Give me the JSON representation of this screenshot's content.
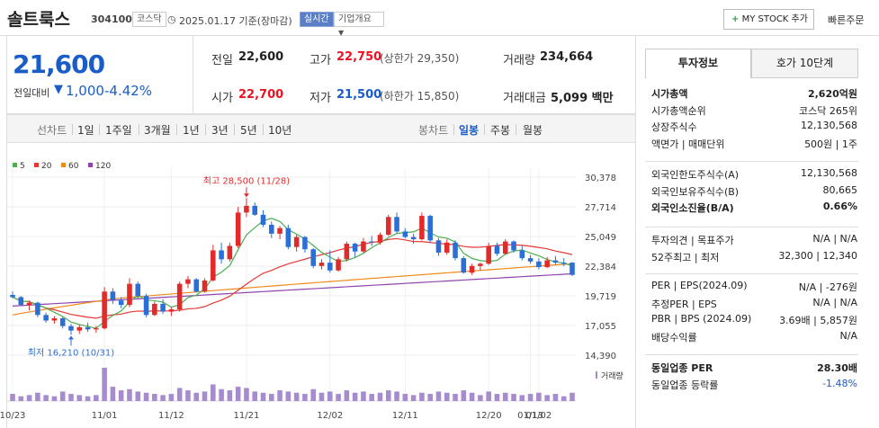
{
  "header": {
    "name": "솔트룩스",
    "code": "304100",
    "market": "코스닥",
    "date_label": "2025.01.17 기준(장마감)",
    "realtime": "실시간",
    "company_info": "기업개요",
    "mystock": "MY STOCK 추가",
    "quick_order": "빠른주문"
  },
  "price": {
    "current": "21,600",
    "change_label": "전일대비",
    "change_value": "1,000",
    "change_pct": "-4.42%"
  },
  "quote": {
    "prev_close_label": "전일",
    "prev_close": "22,600",
    "high_label": "고가",
    "high": "22,750",
    "upper_limit": "(상한가 29,350)",
    "volume_label": "거래량",
    "volume": "234,664",
    "open_label": "시가",
    "open": "22,700",
    "low_label": "저가",
    "low": "21,500",
    "lower_limit": "(하한가 15,850)",
    "amount_label": "거래대금",
    "amount": "5,099 백만"
  },
  "periods": {
    "line_label": "선차트",
    "line_items": [
      "1일",
      "1주일",
      "3개월",
      "1년",
      "3년",
      "5년",
      "10년"
    ],
    "candle_label": "봉차트",
    "candle_items": [
      "일봉",
      "주봉",
      "월봉"
    ],
    "candle_selected": "일봉"
  },
  "chart_data": {
    "type": "candlestick",
    "legend": [
      {
        "name": "5",
        "color": "#4caf50"
      },
      {
        "name": "20",
        "color": "#e53935"
      },
      {
        "name": "60",
        "color": "#ef8a1a"
      },
      {
        "name": "120",
        "color": "#8e44ad"
      }
    ],
    "y_ticks": [
      "30,378",
      "27,714",
      "25,049",
      "22,384",
      "19,719",
      "17,055",
      "14,390"
    ],
    "ylim": [
      14390,
      30378
    ],
    "x_ticks": [
      "10/23",
      "11/01",
      "11/12",
      "11/21",
      "12/02",
      "12/11",
      "12/20",
      "01/02",
      "01/13"
    ],
    "max_label": "최고 28,500 (11/28)",
    "min_label": "최저 16,210 (10/31)",
    "volume_label": "거래량",
    "candles": [
      [
        19800,
        20100,
        19500,
        19600
      ],
      [
        19600,
        19700,
        18800,
        18900
      ],
      [
        18900,
        19300,
        18400,
        19100
      ],
      [
        19100,
        19200,
        17800,
        18000
      ],
      [
        18000,
        18200,
        17300,
        17500
      ],
      [
        17500,
        17900,
        17200,
        17700
      ],
      [
        17700,
        17800,
        16800,
        17000
      ],
      [
        17000,
        17200,
        16210,
        16600
      ],
      [
        16600,
        17100,
        16300,
        16900
      ],
      [
        16900,
        17300,
        16500,
        16700
      ],
      [
        16700,
        17000,
        16400,
        16800
      ],
      [
        16800,
        20500,
        16700,
        20100
      ],
      [
        20100,
        20400,
        19000,
        19300
      ],
      [
        19300,
        19600,
        18600,
        18900
      ],
      [
        18900,
        21300,
        18700,
        20800
      ],
      [
        20800,
        21000,
        19400,
        19700
      ],
      [
        19700,
        19900,
        17800,
        18000
      ],
      [
        18000,
        19200,
        17900,
        19000
      ],
      [
        19000,
        19400,
        18100,
        18300
      ],
      [
        18300,
        18700,
        17900,
        18500
      ],
      [
        18500,
        21000,
        18300,
        20800
      ],
      [
        20800,
        21500,
        20400,
        21200
      ],
      [
        21200,
        21300,
        20000,
        20100
      ],
      [
        20100,
        21300,
        20000,
        21100
      ],
      [
        21100,
        24300,
        21000,
        23800
      ],
      [
        23800,
        24500,
        22600,
        23000
      ],
      [
        23000,
        24500,
        22800,
        24200
      ],
      [
        24200,
        27700,
        24000,
        27200
      ],
      [
        27200,
        28500,
        26800,
        27800
      ],
      [
        27800,
        28100,
        26900,
        27000
      ],
      [
        27000,
        27400,
        25900,
        26100
      ],
      [
        26100,
        26400,
        24900,
        25300
      ],
      [
        25300,
        26000,
        24800,
        25800
      ],
      [
        25800,
        26100,
        23900,
        24100
      ],
      [
        24100,
        25200,
        23700,
        25000
      ],
      [
        25000,
        25100,
        23600,
        23900
      ],
      [
        23900,
        24000,
        22200,
        22400
      ],
      [
        22400,
        23000,
        22100,
        22700
      ],
      [
        22700,
        23800,
        21800,
        22000
      ],
      [
        22000,
        23200,
        21900,
        23000
      ],
      [
        23000,
        24600,
        22800,
        24400
      ],
      [
        24400,
        24500,
        23200,
        23700
      ],
      [
        23700,
        24900,
        23600,
        24600
      ],
      [
        24600,
        25100,
        24200,
        24500
      ],
      [
        24500,
        25400,
        24300,
        25200
      ],
      [
        25200,
        27000,
        25100,
        26800
      ],
      [
        26800,
        27200,
        25300,
        25500
      ],
      [
        25500,
        25800,
        24900,
        25000
      ],
      [
        25000,
        25300,
        24400,
        24800
      ],
      [
        24800,
        27200,
        24700,
        26900
      ],
      [
        26900,
        27000,
        24500,
        24700
      ],
      [
        24700,
        24900,
        23300,
        23600
      ],
      [
        23600,
        24800,
        23400,
        24500
      ],
      [
        24500,
        24700,
        22900,
        23100
      ],
      [
        23100,
        23300,
        21700,
        21800
      ],
      [
        21800,
        22600,
        21600,
        22400
      ],
      [
        22400,
        22700,
        22000,
        22600
      ],
      [
        22600,
        24500,
        22500,
        24200
      ],
      [
        24200,
        24500,
        23300,
        23500
      ],
      [
        23500,
        24800,
        23400,
        24600
      ],
      [
        24600,
        24700,
        23600,
        23800
      ],
      [
        23800,
        24200,
        22900,
        23100
      ],
      [
        23100,
        23400,
        22600,
        22800
      ],
      [
        22800,
        23100,
        22100,
        22300
      ],
      [
        22300,
        23200,
        22200,
        22900
      ],
      [
        22900,
        23300,
        22500,
        22700
      ],
      [
        22700,
        23100,
        22400,
        22600
      ],
      [
        22700,
        22750,
        21500,
        21600
      ]
    ],
    "volumes": [
      6,
      4,
      5,
      7,
      5,
      4,
      8,
      6,
      5,
      4,
      5,
      28,
      12,
      9,
      10,
      8,
      7,
      6,
      5,
      6,
      11,
      9,
      7,
      8,
      14,
      10,
      9,
      12,
      11,
      8,
      7,
      6,
      9,
      8,
      7,
      6,
      10,
      7,
      8,
      6,
      9,
      7,
      8,
      6,
      7,
      9,
      8,
      6,
      5,
      7,
      6,
      8,
      7,
      6,
      9,
      7,
      5,
      8,
      6,
      7,
      6,
      5,
      6,
      7,
      5,
      6,
      4,
      7
    ],
    "ma120": [
      18800,
      21700
    ]
  },
  "side": {
    "tab_invest": "투자정보",
    "tab_hoga": "호가 10단계",
    "rows1": [
      [
        "시가총액",
        "2,620억원"
      ],
      [
        "시가총액순위",
        "코스닥 265위"
      ],
      [
        "상장주식수",
        "12,130,568"
      ],
      [
        "액면가 | 매매단위",
        "500원 | 1주"
      ]
    ],
    "rows2": [
      [
        "외국인한도주식수(A)",
        "12,130,568"
      ],
      [
        "외국인보유주식수(B)",
        "80,665"
      ],
      [
        "외국인소진율(B/A)",
        "0.66%"
      ]
    ],
    "rows3": [
      [
        "투자의견 | 목표주가",
        "N/A | N/A"
      ],
      [
        "52주최고 | 최저",
        "32,300 | 12,340"
      ]
    ],
    "rows4": [
      [
        "PER | EPS(2024.09)",
        "N/A | -276원"
      ],
      [
        "추정PER | EPS",
        "N/A | N/A"
      ],
      [
        "PBR | BPS (2024.09)",
        "3.69배 | 5,857원"
      ],
      [
        "배당수익률",
        "N/A"
      ]
    ],
    "rows5": [
      [
        "동일업종 PER",
        "28.30배"
      ],
      [
        "동일업종 등락률",
        "-1.48%"
      ]
    ]
  }
}
